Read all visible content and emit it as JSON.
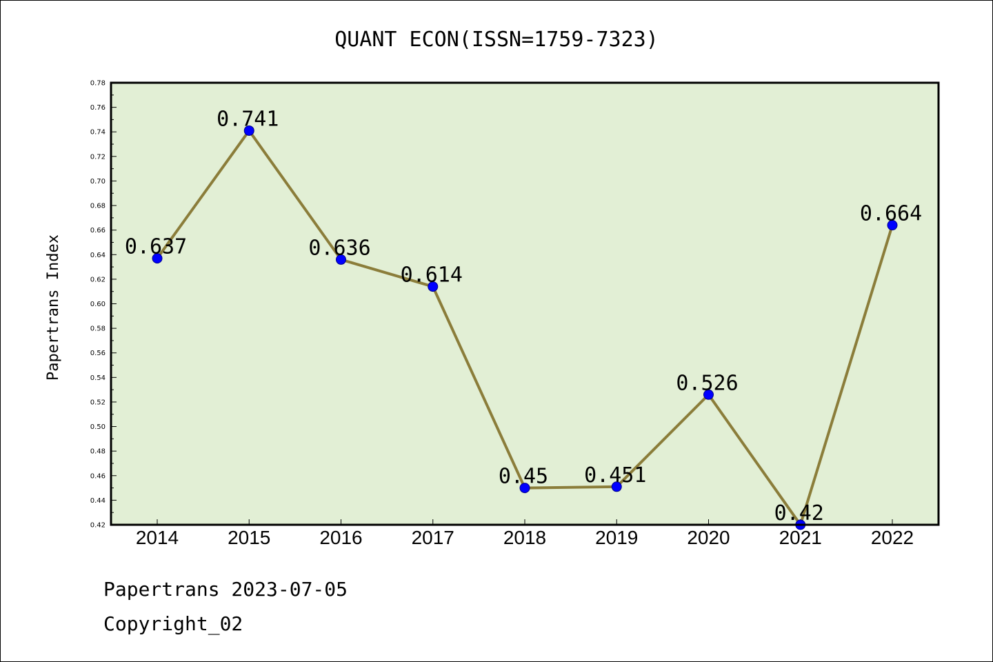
{
  "chart_data": {
    "type": "line",
    "title": "QUANT ECON(ISSN=1759-7323)",
    "xlabel": "",
    "ylabel": "Papertrans Index",
    "categories": [
      "2014",
      "2015",
      "2016",
      "2017",
      "2018",
      "2019",
      "2020",
      "2021",
      "2022"
    ],
    "values": [
      0.637,
      0.741,
      0.636,
      0.614,
      0.45,
      0.451,
      0.526,
      0.42,
      0.664
    ],
    "data_labels": [
      "0.637",
      "0.741",
      "0.636",
      "0.614",
      "0.45",
      "0.451",
      "0.526",
      "0.42",
      "0.664"
    ],
    "ylim": [
      0.42,
      0.78
    ],
    "yticks": [
      "0.42",
      "0.44",
      "0.46",
      "0.48",
      "0.50",
      "0.52",
      "0.54",
      "0.56",
      "0.58",
      "0.60",
      "0.62",
      "0.64",
      "0.66",
      "0.68",
      "0.70",
      "0.72",
      "0.74",
      "0.76",
      "0.78"
    ],
    "grid": false,
    "legend": "none",
    "colors": {
      "plot_background": "#e2efd5",
      "line": "#8b7d3a",
      "marker": "#0000ff"
    }
  },
  "footer": {
    "line1": "Papertrans 2023-07-05",
    "line2": "Copyright_02"
  }
}
